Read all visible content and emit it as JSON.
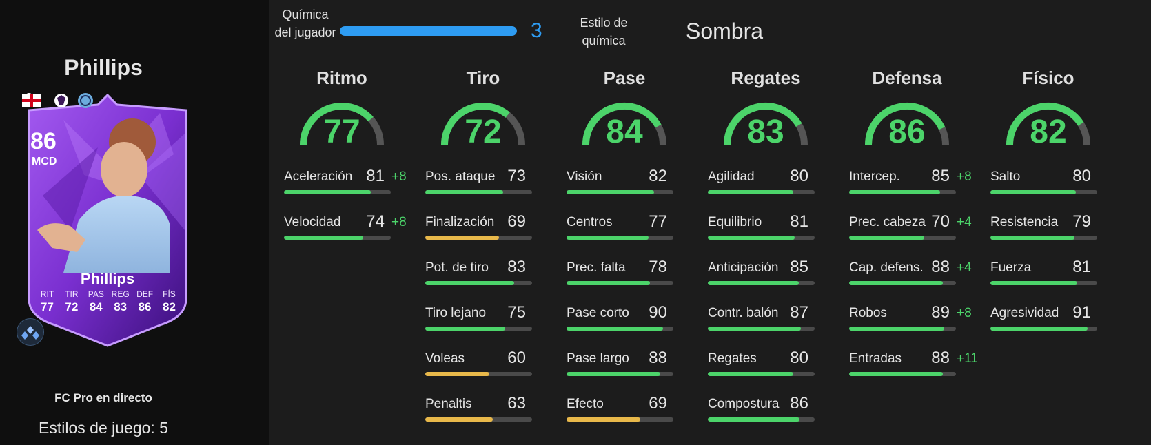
{
  "player": {
    "name": "Phillips",
    "card_name": "Phillips",
    "rating": "86",
    "position": "MCD",
    "version": "FC Pro en directo",
    "playstyles": "Estilos de juego: 5",
    "face_stats": [
      {
        "label": "RIT",
        "value": "77"
      },
      {
        "label": "TIR",
        "value": "72"
      },
      {
        "label": "PAS",
        "value": "84"
      },
      {
        "label": "REG",
        "value": "83"
      },
      {
        "label": "DEF",
        "value": "86"
      },
      {
        "label": "FÍS",
        "value": "82"
      }
    ]
  },
  "chemistry": {
    "label": "Química del jugador",
    "value": "3",
    "max": 3,
    "style_label": "Estilo de química",
    "style_value": "Sombra"
  },
  "colors": {
    "high": "#4cd46a",
    "mid": "#e8b84a",
    "chem": "#2e9cf2",
    "card_purple": "#7a2fd0"
  },
  "categories": [
    {
      "name": "Ritmo",
      "value": "77",
      "stats": [
        {
          "name": "Aceleración",
          "value": "81",
          "boost": "+8"
        },
        {
          "name": "Velocidad",
          "value": "74",
          "boost": "+8"
        }
      ]
    },
    {
      "name": "Tiro",
      "value": "72",
      "stats": [
        {
          "name": "Pos. ataque",
          "value": "73",
          "boost": ""
        },
        {
          "name": "Finalización",
          "value": "69",
          "boost": ""
        },
        {
          "name": "Pot. de tiro",
          "value": "83",
          "boost": ""
        },
        {
          "name": "Tiro lejano",
          "value": "75",
          "boost": ""
        },
        {
          "name": "Voleas",
          "value": "60",
          "boost": ""
        },
        {
          "name": "Penaltis",
          "value": "63",
          "boost": ""
        }
      ]
    },
    {
      "name": "Pase",
      "value": "84",
      "stats": [
        {
          "name": "Visión",
          "value": "82",
          "boost": ""
        },
        {
          "name": "Centros",
          "value": "77",
          "boost": ""
        },
        {
          "name": "Prec. falta",
          "value": "78",
          "boost": ""
        },
        {
          "name": "Pase corto",
          "value": "90",
          "boost": ""
        },
        {
          "name": "Pase largo",
          "value": "88",
          "boost": ""
        },
        {
          "name": "Efecto",
          "value": "69",
          "boost": ""
        }
      ]
    },
    {
      "name": "Regates",
      "value": "83",
      "stats": [
        {
          "name": "Agilidad",
          "value": "80",
          "boost": ""
        },
        {
          "name": "Equilibrio",
          "value": "81",
          "boost": ""
        },
        {
          "name": "Anticipación",
          "value": "85",
          "boost": ""
        },
        {
          "name": "Contr. balón",
          "value": "87",
          "boost": ""
        },
        {
          "name": "Regates",
          "value": "80",
          "boost": ""
        },
        {
          "name": "Compostura",
          "value": "86",
          "boost": ""
        }
      ]
    },
    {
      "name": "Defensa",
      "value": "86",
      "stats": [
        {
          "name": "Intercep.",
          "value": "85",
          "boost": "+8"
        },
        {
          "name": "Prec. cabeza",
          "value": "70",
          "boost": "+4"
        },
        {
          "name": "Cap. defens.",
          "value": "88",
          "boost": "+4"
        },
        {
          "name": "Robos",
          "value": "89",
          "boost": "+8"
        },
        {
          "name": "Entradas",
          "value": "88",
          "boost": "+11"
        }
      ]
    },
    {
      "name": "Físico",
      "value": "82",
      "stats": [
        {
          "name": "Salto",
          "value": "80",
          "boost": ""
        },
        {
          "name": "Resistencia",
          "value": "79",
          "boost": ""
        },
        {
          "name": "Fuerza",
          "value": "81",
          "boost": ""
        },
        {
          "name": "Agresividad",
          "value": "91",
          "boost": ""
        }
      ]
    }
  ]
}
